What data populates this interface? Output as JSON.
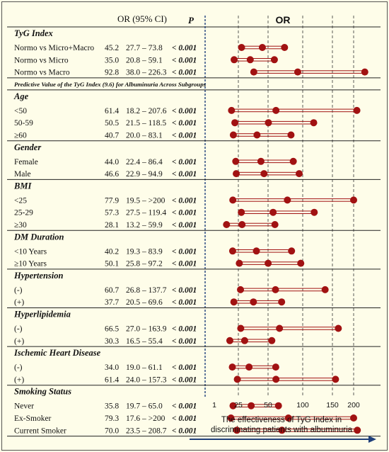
{
  "chart_data": {
    "type": "forest",
    "header": {
      "or_ci": "OR (95% CI)",
      "p": "P",
      "plot": "OR"
    },
    "note": "Predictive Value of the TyG Index (9.6) for Albuminuria Across Subgroups",
    "x_ticks": [
      "1",
      "25",
      "50",
      "100",
      "150",
      "200"
    ],
    "x_tick_values": [
      1,
      25,
      50,
      100,
      150,
      200
    ],
    "xlabel_line1": "The effectiveness of TyG Index in",
    "xlabel_line2": "discriminating patients with albuminuria",
    "sections": [
      {
        "title": "TyG Index",
        "rows": [
          {
            "label": "Normo vs Micro+Macro",
            "or": "45.2",
            "ci": "27.7 – 73.8",
            "p": "< 0.001",
            "or_val": 45.2,
            "lo": 27.7,
            "hi": 73.8
          },
          {
            "label": "Normo vs Micro",
            "or": "35.0",
            "ci": "20.8 – 59.1",
            "p": "< 0.001",
            "or_val": 35.0,
            "lo": 20.8,
            "hi": 59.1
          },
          {
            "label": "Normo vs Macro",
            "or": "92.8",
            "ci": "38.0 – 226.3",
            "p": "< 0.001",
            "or_val": 92.8,
            "lo": 38.0,
            "hi": 226.3
          }
        ]
      },
      {
        "title": "Age",
        "rows": [
          {
            "label": "<50",
            "or": "61.4",
            "ci": "18.2 – 207.6",
            "p": "< 0.001",
            "or_val": 61.4,
            "lo": 18.2,
            "hi": 207.6
          },
          {
            "label": "50-59",
            "or": "50.5",
            "ci": "21.5 – 118.5",
            "p": "< 0.001",
            "or_val": 50.5,
            "lo": 21.5,
            "hi": 118.5
          },
          {
            "label": "≥60",
            "or": "40.7",
            "ci": "20.0 – 83.1",
            "p": "< 0.001",
            "or_val": 40.7,
            "lo": 20.0,
            "hi": 83.1
          }
        ]
      },
      {
        "title": "Gender",
        "rows": [
          {
            "label": "Female",
            "or": "44.0",
            "ci": "22.4 – 86.4",
            "p": "< 0.001",
            "or_val": 44.0,
            "lo": 22.4,
            "hi": 86.4
          },
          {
            "label": "Male",
            "or": "46.6",
            "ci": "22.9 – 94.9",
            "p": "< 0.001",
            "or_val": 46.6,
            "lo": 22.9,
            "hi": 94.9
          }
        ]
      },
      {
        "title": "BMI",
        "rows": [
          {
            "label": "<25",
            "or": "77.9",
            "ci": "19.5 – >200",
            "p": "< 0.001",
            "or_val": 77.9,
            "lo": 19.5,
            "hi": 200
          },
          {
            "label": "25-29",
            "or": "57.3",
            "ci": "27.5 – 119.4",
            "p": "< 0.001",
            "or_val": 57.3,
            "lo": 27.5,
            "hi": 119.4
          },
          {
            "label": "≥30",
            "or": "28.1",
            "ci": "13.2 – 59.9",
            "p": "< 0.001",
            "or_val": 28.1,
            "lo": 13.2,
            "hi": 59.9
          }
        ]
      },
      {
        "title": "DM Duration",
        "rows": [
          {
            "label": "<10 Years",
            "or": "40.2",
            "ci": "19.3 – 83.9",
            "p": "< 0.001",
            "or_val": 40.2,
            "lo": 19.3,
            "hi": 83.9
          },
          {
            "label": "≥10 Years",
            "or": "50.1",
            "ci": "25.8 – 97.2",
            "p": "< 0.001",
            "or_val": 50.1,
            "lo": 25.8,
            "hi": 97.2
          }
        ]
      },
      {
        "title": "Hypertension",
        "rows": [
          {
            "label": "(-)",
            "or": "60.7",
            "ci": "26.8 – 137.7",
            "p": "< 0.001",
            "or_val": 60.7,
            "lo": 26.8,
            "hi": 137.7
          },
          {
            "label": "(+)",
            "or": "37.7",
            "ci": "20.5 – 69.6",
            "p": "< 0.001",
            "or_val": 37.7,
            "lo": 20.5,
            "hi": 69.6
          }
        ]
      },
      {
        "title": "Hyperlipidemia",
        "rows": [
          {
            "label": "(-)",
            "or": "66.5",
            "ci": "27.0 – 163.9",
            "p": "< 0.001",
            "or_val": 66.5,
            "lo": 27.0,
            "hi": 163.9
          },
          {
            "label": "(+)",
            "or": "30.3",
            "ci": "16.5 – 55.4",
            "p": "< 0.001",
            "or_val": 30.3,
            "lo": 16.5,
            "hi": 55.4
          }
        ]
      },
      {
        "title": "Ischemic Heart Disease",
        "rows": [
          {
            "label": "(-)",
            "or": "34.0",
            "ci": "19.0 – 61.1",
            "p": "< 0.001",
            "or_val": 34.0,
            "lo": 19.0,
            "hi": 61.1
          },
          {
            "label": "(+)",
            "or": "61.4",
            "ci": "24.0 – 157.3",
            "p": "< 0.001",
            "or_val": 61.4,
            "lo": 24.0,
            "hi": 157.3
          }
        ]
      },
      {
        "title": "Smoking Status",
        "rows": [
          {
            "label": "Never",
            "or": "35.8",
            "ci": "19.7 – 65.0",
            "p": "< 0.001",
            "or_val": 35.8,
            "lo": 19.7,
            "hi": 65.0
          },
          {
            "label": "Ex-Smoker",
            "or": "79.3",
            "ci": "17.6 – >200",
            "p": "< 0.001",
            "or_val": 79.3,
            "lo": 17.6,
            "hi": 200
          },
          {
            "label": "Current Smoker",
            "or": "70.0",
            "ci": "23.5 – 208.7",
            "p": "< 0.001",
            "or_val": 70.0,
            "lo": 23.5,
            "hi": 208.7
          }
        ]
      }
    ],
    "colors": {
      "marker": "#a11212",
      "line": "#a11212",
      "arrow": "#1f3f7a",
      "axis": "#1f3f7a"
    }
  }
}
